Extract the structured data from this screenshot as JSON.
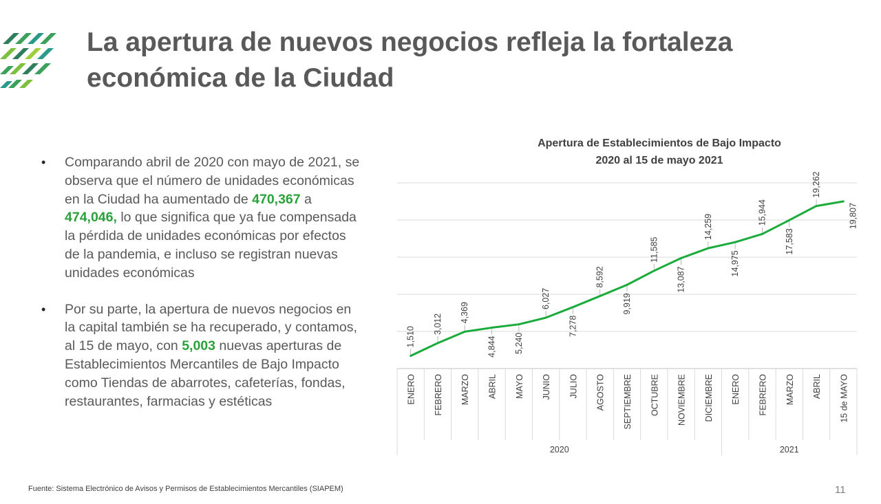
{
  "slide": {
    "title": "La apertura de nuevos negocios refleja la fortaleza económica de la Ciudad",
    "bullets": [
      {
        "pre": "Comparando abril de 2020 con mayo de 2021, se observa que el número de unidades económicas en la Ciudad ha aumentado de ",
        "hl1": "470,367",
        "mid": " a ",
        "hl2": "474,046,",
        "post": " lo que significa que ya fue compensada la pérdida de unidades económicas por efectos de la pandemia, e incluso se registran nuevas unidades económicas"
      },
      {
        "pre": "Por su parte, la apertura de nuevos negocios en la capital también se ha recuperado, y contamos, al 15 de mayo, con ",
        "hl1": "5,003",
        "post": " nuevas aperturas de Establecimientos Mercantiles de Bajo Impacto como Tiendas de abarrotes, cafeterías, fondas, restaurantes, farmacias y estéticas"
      }
    ],
    "bullet_symbol": "•",
    "source": "Fuente: Sistema Electrónico de Avisos y Permisos de Establecimientos Mercantiles (SIAPEM)",
    "page_number": "11"
  },
  "colors": {
    "line": "#1aab3a",
    "highlight": "#2aa13a",
    "grid": "#d9d9d9",
    "text": "#595959"
  },
  "chart_data": {
    "type": "line",
    "title_line1": "Apertura de Establecimientos de Bajo Impacto",
    "title_line2": "2020  al 15 de mayo 2021",
    "categories": [
      "ENERO",
      "FEBRERO",
      "MARZO",
      "ABRIL",
      "MAYO",
      "JUNIO",
      "JULIO",
      "AGOSTO",
      "SEPTIEMBRE",
      "OCTUBRE",
      "NOVIEMBRE",
      "DICIEMBRE",
      "ENERO",
      "FEBRERO",
      "MARZO",
      "ABRIL",
      "15 de MAYO"
    ],
    "values": [
      1510,
      3012,
      4369,
      4844,
      5240,
      6027,
      7278,
      8592,
      9919,
      11585,
      13087,
      14259,
      14975,
      15944,
      17583,
      19262,
      19807
    ],
    "labels": [
      "1,510",
      "3,012",
      "4,369",
      "4,844",
      "5,240",
      "6,027",
      "7,278",
      "8,592",
      "9,919",
      "11,585",
      "13,087",
      "14,259",
      "14,975",
      "15,944",
      "17,583",
      "19,262",
      "19,807"
    ],
    "label_positions": [
      "above",
      "above",
      "above",
      "below",
      "below",
      "above",
      "below",
      "above",
      "below",
      "above",
      "below",
      "above",
      "below",
      "above",
      "below",
      "above",
      "right"
    ],
    "groups": [
      {
        "name": "2020",
        "count": 12
      },
      {
        "name": "2021",
        "count": 5
      }
    ],
    "ylim": [
      0,
      22000
    ],
    "grid": true,
    "legend": "none"
  }
}
